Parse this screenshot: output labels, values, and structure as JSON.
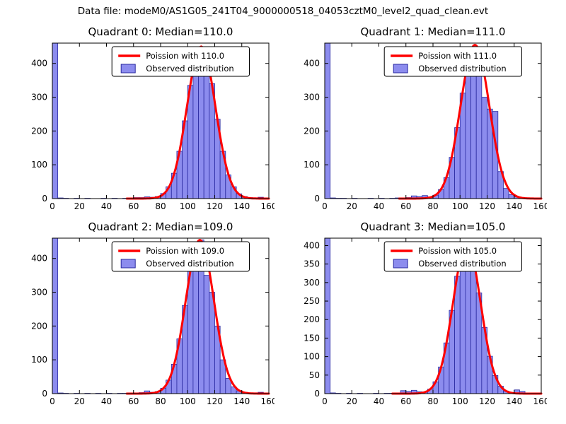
{
  "figure": {
    "title": "Data file: modeM0/AS1G05_241T04_9000000518_04053cztM0_level2_quad_clean.evt"
  },
  "colors": {
    "bar_fill": "#8c8cee",
    "bar_edge": "#2a2aa0",
    "curve": "#ff0000",
    "axis": "#000000",
    "background": "#ffffff"
  },
  "chart_data": [
    {
      "type": "bar",
      "title": "Quadrant 0: Median=110.0",
      "median": 110.0,
      "legend": [
        {
          "label": "Poission with 110.0",
          "symbol": "line"
        },
        {
          "label": "Observed distribution",
          "symbol": "patch"
        }
      ],
      "xlim": [
        0,
        160
      ],
      "ylim": [
        0,
        460
      ],
      "xticks": [
        0,
        20,
        40,
        60,
        80,
        100,
        120,
        140,
        160
      ],
      "yticks": [
        0,
        100,
        200,
        300,
        400
      ],
      "bin_start": 0,
      "bin_width": 4,
      "counts": [
        460,
        2,
        1,
        0,
        1,
        0,
        1,
        0,
        0,
        1,
        0,
        1,
        0,
        1,
        2,
        3,
        3,
        5,
        4,
        6,
        15,
        35,
        75,
        140,
        230,
        335,
        415,
        445,
        430,
        340,
        235,
        140,
        70,
        35,
        14,
        6,
        3,
        2,
        4,
        1
      ],
      "poisson_curve": {
        "center": 110,
        "sigma": 10.5,
        "peak": 450,
        "x_range": [
          55,
          160
        ]
      }
    },
    {
      "type": "bar",
      "title": "Quadrant 1: Median=111.0",
      "median": 111.0,
      "legend": [
        {
          "label": "Poission with 111.0",
          "symbol": "line"
        },
        {
          "label": "Observed distribution",
          "symbol": "patch"
        }
      ],
      "xlim": [
        0,
        160
      ],
      "ylim": [
        0,
        460
      ],
      "xticks": [
        0,
        20,
        40,
        60,
        80,
        100,
        120,
        140,
        160
      ],
      "yticks": [
        0,
        100,
        200,
        300,
        400
      ],
      "bin_start": 0,
      "bin_width": 4,
      "counts": [
        460,
        2,
        1,
        1,
        0,
        1,
        0,
        0,
        1,
        0,
        1,
        0,
        1,
        2,
        2,
        3,
        8,
        6,
        9,
        5,
        10,
        27,
        62,
        122,
        210,
        312,
        402,
        448,
        432,
        300,
        265,
        258,
        80,
        30,
        12,
        5,
        3,
        2,
        1,
        1
      ],
      "poisson_curve": {
        "center": 111,
        "sigma": 10.6,
        "peak": 455,
        "x_range": [
          55,
          160
        ]
      }
    },
    {
      "type": "bar",
      "title": "Quadrant 2: Median=109.0",
      "median": 109.0,
      "legend": [
        {
          "label": "Poission with 109.0",
          "symbol": "line"
        },
        {
          "label": "Observed distribution",
          "symbol": "patch"
        }
      ],
      "xlim": [
        0,
        160
      ],
      "ylim": [
        0,
        460
      ],
      "xticks": [
        0,
        20,
        40,
        60,
        80,
        100,
        120,
        140,
        160
      ],
      "yticks": [
        0,
        100,
        200,
        300,
        400
      ],
      "bin_start": 0,
      "bin_width": 4,
      "counts": [
        460,
        2,
        1,
        0,
        1,
        0,
        1,
        0,
        1,
        0,
        1,
        0,
        1,
        1,
        2,
        2,
        3,
        8,
        4,
        6,
        16,
        40,
        87,
        162,
        261,
        363,
        435,
        455,
        350,
        300,
        200,
        100,
        45,
        20,
        8,
        4,
        2,
        1,
        4,
        0
      ],
      "poisson_curve": {
        "center": 109,
        "sigma": 10.4,
        "peak": 455,
        "x_range": [
          55,
          160
        ]
      }
    },
    {
      "type": "bar",
      "title": "Quadrant 3: Median=105.0",
      "median": 105.0,
      "legend": [
        {
          "label": "Poission with 105.0",
          "symbol": "line"
        },
        {
          "label": "Observed distribution",
          "symbol": "patch"
        }
      ],
      "xlim": [
        0,
        160
      ],
      "ylim": [
        0,
        420
      ],
      "xticks": [
        0,
        20,
        40,
        60,
        80,
        100,
        120,
        140,
        160
      ],
      "yticks": [
        0,
        50,
        100,
        150,
        200,
        250,
        300,
        350,
        400
      ],
      "bin_start": 0,
      "bin_width": 4,
      "counts": [
        420,
        2,
        1,
        0,
        1,
        0,
        1,
        0,
        0,
        1,
        0,
        1,
        1,
        2,
        8,
        6,
        9,
        5,
        4,
        12,
        32,
        72,
        137,
        225,
        317,
        383,
        398,
        355,
        272,
        179,
        101,
        49,
        20,
        7,
        2,
        10,
        6,
        2,
        1,
        0
      ],
      "poisson_curve": {
        "center": 105,
        "sigma": 10.2,
        "peak": 405,
        "x_range": [
          50,
          160
        ]
      }
    }
  ]
}
